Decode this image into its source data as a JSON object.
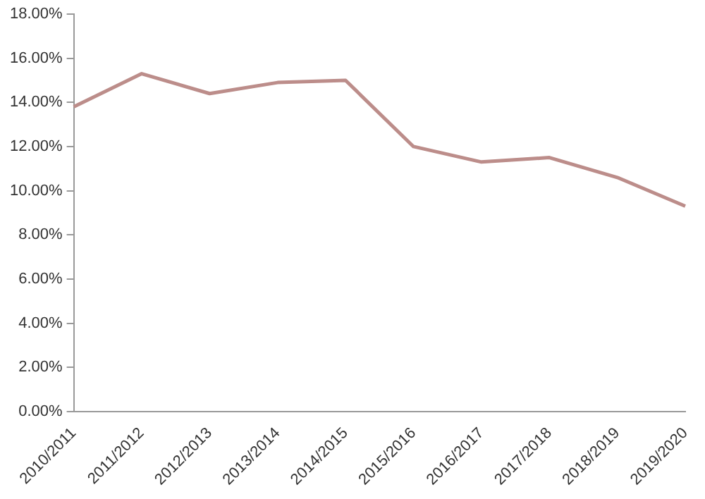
{
  "chart_data": {
    "type": "line",
    "categories": [
      "2010/2011",
      "2011/2012",
      "2012/2013",
      "2013/2014",
      "2014/2015",
      "2015/2016",
      "2016/2017",
      "2017/2018",
      "2018/2019",
      "2019/2020"
    ],
    "series": [
      {
        "color": "#bc8d8a",
        "values": [
          13.8,
          15.3,
          14.4,
          14.9,
          15.0,
          12.0,
          11.3,
          11.5,
          10.6,
          9.3
        ]
      }
    ],
    "ylim": [
      0,
      18
    ],
    "yticks": [
      {
        "value": 0,
        "label": "0.00%"
      },
      {
        "value": 2,
        "label": "2.00%"
      },
      {
        "value": 4,
        "label": "4.00%"
      },
      {
        "value": 6,
        "label": "6.00%"
      },
      {
        "value": 8,
        "label": "8.00%"
      },
      {
        "value": 10,
        "label": "10.00%"
      },
      {
        "value": 12,
        "label": "12.00%"
      },
      {
        "value": 14,
        "label": "14.00%"
      },
      {
        "value": 16,
        "label": "16.00%"
      },
      {
        "value": 18,
        "label": "18.00%"
      }
    ],
    "grid": false,
    "legend": false,
    "marker": "none",
    "line_style": "solid"
  }
}
